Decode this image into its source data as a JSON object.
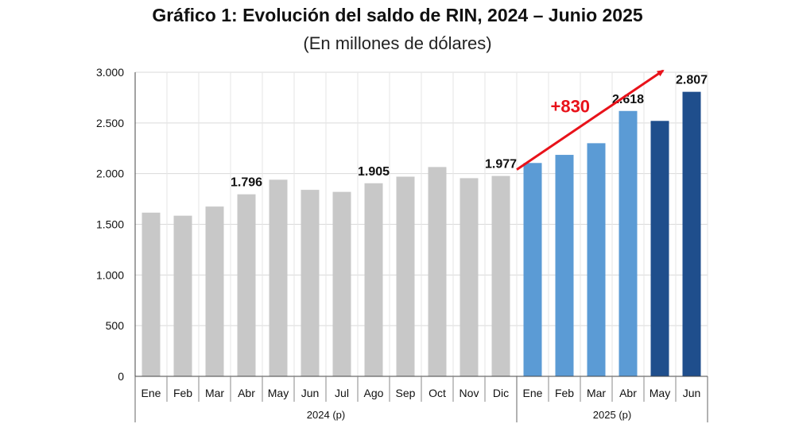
{
  "title": "Gráfico 1: Evolución del saldo de RIN, 2024 – Junio 2025",
  "subtitle": "(En millones de dólares)",
  "chart_data": {
    "type": "bar",
    "categories": [
      "Ene",
      "Feb",
      "Mar",
      "Abr",
      "May",
      "Jun",
      "Jul",
      "Ago",
      "Sep",
      "Oct",
      "Nov",
      "Dic",
      "Ene",
      "Feb",
      "Mar",
      "Abr",
      "May",
      "Jun"
    ],
    "values": [
      1615,
      1585,
      1675,
      1796,
      1940,
      1840,
      1820,
      1905,
      1970,
      2065,
      1955,
      1977,
      2105,
      2185,
      2300,
      2618,
      2520,
      2807
    ],
    "groups": [
      {
        "label": "2024 (p)",
        "count": 12
      },
      {
        "label": "2025 (p)",
        "count": 6
      }
    ],
    "ylim": [
      0,
      3000
    ],
    "yticks": [
      0,
      500,
      1000,
      1500,
      2000,
      2500,
      3000
    ],
    "ytick_labels": [
      "0",
      "500",
      "1.000",
      "1.500",
      "2.000",
      "2.500",
      "3.000"
    ],
    "data_labels": [
      {
        "index": 3,
        "text": "1.796"
      },
      {
        "index": 7,
        "text": "1.905"
      },
      {
        "index": 11,
        "text": "1.977"
      },
      {
        "index": 15,
        "text": "2.618"
      },
      {
        "index": 17,
        "text": "2.807"
      }
    ],
    "annotation": {
      "text": "+830",
      "color": "#e8121a"
    },
    "bar_colors": [
      "#c8c8c8",
      "#c8c8c8",
      "#c8c8c8",
      "#c8c8c8",
      "#c8c8c8",
      "#c8c8c8",
      "#c8c8c8",
      "#c8c8c8",
      "#c8c8c8",
      "#c8c8c8",
      "#c8c8c8",
      "#c8c8c8",
      "#5b9bd5",
      "#5b9bd5",
      "#5b9bd5",
      "#5b9bd5",
      "#1f4e8c",
      "#1f4e8c"
    ],
    "grid": true
  }
}
